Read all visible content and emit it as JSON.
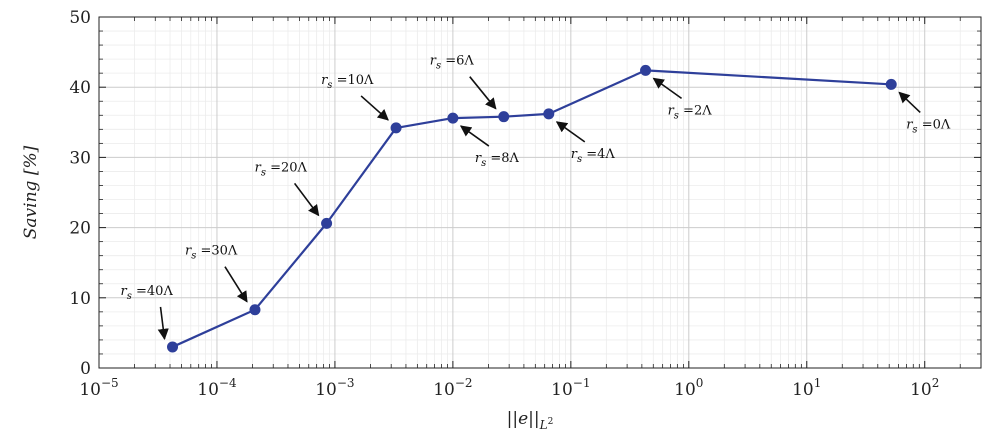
{
  "chart_data": {
    "type": "line",
    "xscale": "log",
    "xlim": [
      1e-05,
      300
    ],
    "ylim": [
      0,
      50
    ],
    "grid": true,
    "xlabel": "||e||_{L^2}",
    "ylabel": "Saving [%]",
    "x_ticks": [
      {
        "value": 1e-05,
        "base": "10",
        "exp": "−5"
      },
      {
        "value": 0.0001,
        "base": "10",
        "exp": "−4"
      },
      {
        "value": 0.001,
        "base": "10",
        "exp": "−3"
      },
      {
        "value": 0.01,
        "base": "10",
        "exp": "−2"
      },
      {
        "value": 0.1,
        "base": "10",
        "exp": "−1"
      },
      {
        "value": 1,
        "base": "10",
        "exp": "0"
      },
      {
        "value": 10,
        "base": "10",
        "exp": "1"
      },
      {
        "value": 100,
        "base": "10",
        "exp": "2"
      }
    ],
    "y_ticks": [
      0,
      10,
      20,
      30,
      40,
      50
    ],
    "line_color": "#2e3f9a",
    "series": [
      {
        "x": [
          4.2e-05,
          0.00021,
          0.00085,
          0.0033,
          0.01,
          0.027,
          0.065,
          0.43,
          52
        ],
        "y": [
          3.0,
          8.3,
          20.6,
          34.2,
          35.6,
          35.8,
          36.2,
          42.4,
          40.4
        ]
      }
    ],
    "annotations": [
      {
        "text": "r_s =40Λ",
        "point_index": 0
      },
      {
        "text": "r_s =30Λ",
        "point_index": 1
      },
      {
        "text": "r_s =20Λ",
        "point_index": 2
      },
      {
        "text": "r_s =10Λ",
        "point_index": 3
      },
      {
        "text": "r_s =8Λ",
        "point_index": 4
      },
      {
        "text": "r_s =6Λ",
        "point_index": 5
      },
      {
        "text": "r_s =4Λ",
        "point_index": 6
      },
      {
        "text": "r_s =2Λ",
        "point_index": 7
      },
      {
        "text": "r_s =0Λ",
        "point_index": 8
      }
    ]
  }
}
